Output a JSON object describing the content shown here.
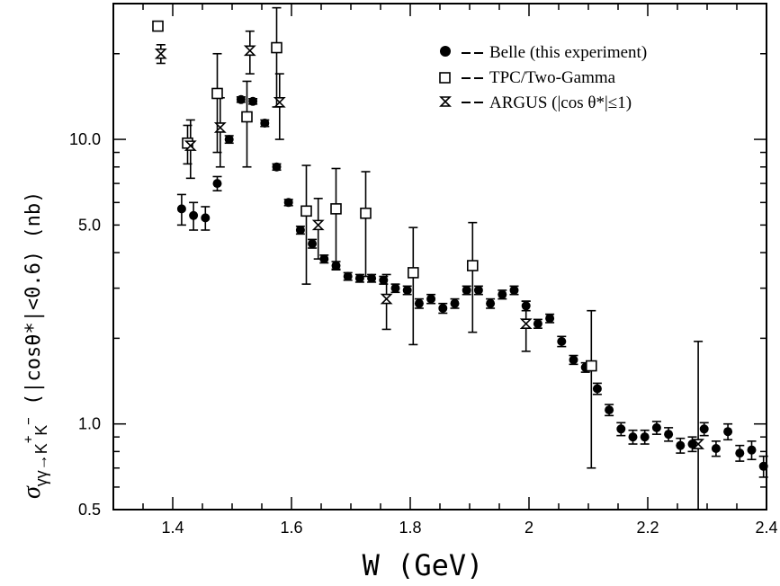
{
  "chart_data": {
    "type": "scatter",
    "xlabel": "W (GeV)",
    "ylabel": {
      "sigma": "σ",
      "sub": "γγ→K",
      "sup1": "+",
      "k2": "K",
      "sup2": "−",
      "cond": "  (|cosθ*|<0.6) (nb)"
    },
    "xlim": [
      1.3,
      2.4
    ],
    "ylim": [
      0.5,
      30
    ],
    "yscale": "log",
    "x_ticks": [
      1.4,
      1.6,
      1.8,
      2.0,
      2.2,
      2.4
    ],
    "x_tick_labels": [
      "1.4",
      "1.6",
      "1.8",
      "2",
      "2.2",
      "2.4"
    ],
    "y_ticks": [
      0.5,
      1.0,
      5.0,
      10.0
    ],
    "y_tick_labels": [
      "0.5",
      "1.0",
      "5.0",
      "10.0"
    ],
    "legend_position": "top-right",
    "series": [
      {
        "name": "Belle (this experiment)",
        "legend_label": "Belle (this experiment)",
        "marker": "filled-circle",
        "points": [
          [
            1.415,
            5.7,
            0.7
          ],
          [
            1.435,
            5.4,
            0.6
          ],
          [
            1.455,
            5.3,
            0.5
          ],
          [
            1.475,
            7.0,
            0.4
          ],
          [
            1.495,
            10.0,
            0.3
          ],
          [
            1.515,
            13.8,
            0.3
          ],
          [
            1.535,
            13.6,
            0.3
          ],
          [
            1.555,
            11.4,
            0.3
          ],
          [
            1.575,
            8.0,
            0.2
          ],
          [
            1.595,
            6.0,
            0.15
          ],
          [
            1.615,
            4.8,
            0.15
          ],
          [
            1.635,
            4.3,
            0.15
          ],
          [
            1.655,
            3.8,
            0.12
          ],
          [
            1.675,
            3.6,
            0.12
          ],
          [
            1.695,
            3.3,
            0.1
          ],
          [
            1.715,
            3.25,
            0.1
          ],
          [
            1.735,
            3.25,
            0.1
          ],
          [
            1.755,
            3.2,
            0.1
          ],
          [
            1.775,
            3.0,
            0.1
          ],
          [
            1.795,
            2.95,
            0.1
          ],
          [
            1.815,
            2.65,
            0.1
          ],
          [
            1.835,
            2.75,
            0.1
          ],
          [
            1.855,
            2.55,
            0.1
          ],
          [
            1.875,
            2.65,
            0.1
          ],
          [
            1.895,
            2.95,
            0.1
          ],
          [
            1.915,
            2.95,
            0.1
          ],
          [
            1.935,
            2.65,
            0.1
          ],
          [
            1.955,
            2.85,
            0.1
          ],
          [
            1.975,
            2.95,
            0.1
          ],
          [
            1.995,
            2.6,
            0.1
          ],
          [
            2.015,
            2.25,
            0.08
          ],
          [
            2.035,
            2.35,
            0.08
          ],
          [
            2.055,
            1.95,
            0.08
          ],
          [
            2.075,
            1.68,
            0.06
          ],
          [
            2.095,
            1.58,
            0.06
          ],
          [
            2.115,
            1.33,
            0.06
          ],
          [
            2.135,
            1.12,
            0.05
          ],
          [
            2.155,
            0.96,
            0.05
          ],
          [
            2.175,
            0.9,
            0.05
          ],
          [
            2.195,
            0.9,
            0.05
          ],
          [
            2.215,
            0.97,
            0.05
          ],
          [
            2.235,
            0.92,
            0.05
          ],
          [
            2.255,
            0.84,
            0.05
          ],
          [
            2.275,
            0.85,
            0.05
          ],
          [
            2.295,
            0.96,
            0.05
          ],
          [
            2.315,
            0.82,
            0.05
          ],
          [
            2.335,
            0.94,
            0.06
          ],
          [
            2.355,
            0.79,
            0.05
          ],
          [
            2.375,
            0.81,
            0.06
          ],
          [
            2.395,
            0.71,
            0.06
          ]
        ]
      },
      {
        "name": "TPC/Two-Gamma",
        "legend_label": "TPC/Two-Gamma",
        "marker": "open-square",
        "points": [
          [
            1.375,
            25.0,
            0.0
          ],
          [
            1.425,
            9.7,
            1.5
          ],
          [
            1.475,
            14.5,
            5.5
          ],
          [
            1.525,
            12.0,
            4.0
          ],
          [
            1.575,
            21.0,
            8.0
          ],
          [
            1.625,
            5.6,
            2.5
          ],
          [
            1.675,
            5.7,
            2.2
          ],
          [
            1.725,
            5.5,
            2.2
          ],
          [
            1.805,
            3.4,
            1.5
          ],
          [
            1.905,
            3.6,
            1.5
          ],
          [
            2.105,
            1.6,
            0.9
          ]
        ]
      },
      {
        "name": "ARGUS (|cos θ*|≤1)",
        "legend_label": "ARGUS (|cos θ*|≤1)",
        "marker": "hourglass",
        "points": [
          [
            1.38,
            20.0,
            1.5
          ],
          [
            1.43,
            9.5,
            2.2
          ],
          [
            1.48,
            11.0,
            3.0
          ],
          [
            1.53,
            20.5,
            3.5
          ],
          [
            1.58,
            13.5,
            3.5
          ],
          [
            1.645,
            5.0,
            1.2
          ],
          [
            1.76,
            2.75,
            0.6
          ],
          [
            1.995,
            2.25,
            0.45
          ],
          [
            2.285,
            0.85,
            1.1
          ]
        ]
      }
    ]
  }
}
